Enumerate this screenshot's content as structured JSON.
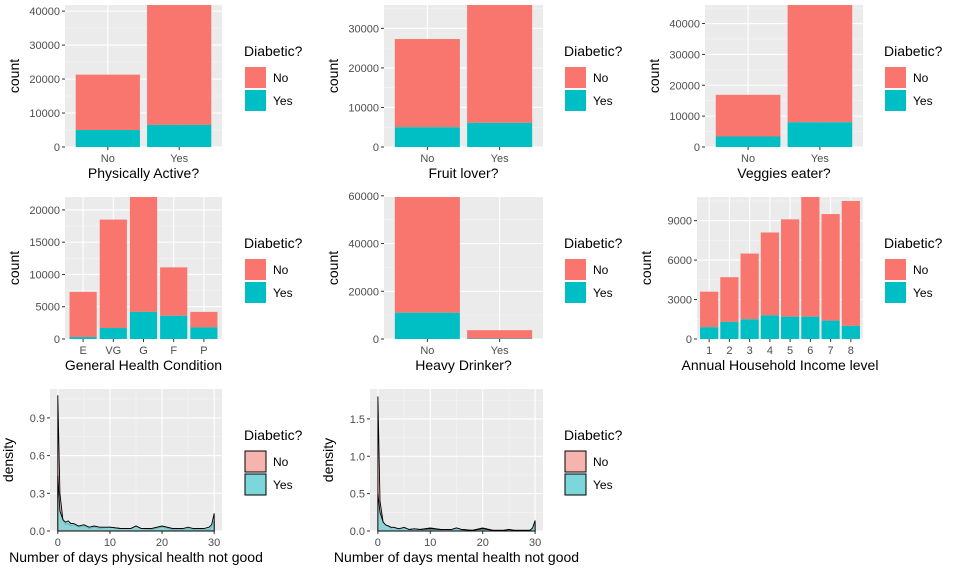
{
  "legend": {
    "title": "Diabetic?",
    "labels": [
      "No",
      "Yes"
    ],
    "colors": {
      "No": "#F8766D",
      "Yes": "#00BFC4"
    },
    "density_colors": {
      "No": "#F7B4AE",
      "Yes": "#7DD7DA"
    }
  },
  "style": {
    "panel_bg": "#EBEBEB",
    "grid_major": "#FFFFFF",
    "tick_text": "#4D4D4D",
    "axis_title": "#000000"
  },
  "chart_data": [
    {
      "type": "bar",
      "xlabel": "Physically Active?",
      "ylabel": "count",
      "categories": [
        "No",
        "Yes"
      ],
      "series": [
        {
          "name": "No",
          "values": [
            16300,
            35300
          ]
        },
        {
          "name": "Yes",
          "values": [
            5000,
            6500
          ]
        }
      ],
      "yticks": [
        0,
        10000,
        20000,
        30000,
        40000
      ],
      "ylim": [
        0,
        41800
      ]
    },
    {
      "type": "bar",
      "xlabel": "Fruit lover?",
      "ylabel": "count",
      "categories": [
        "No",
        "Yes"
      ],
      "series": [
        {
          "name": "No",
          "values": [
            22300,
            29800
          ]
        },
        {
          "name": "Yes",
          "values": [
            5000,
            6100
          ]
        }
      ],
      "yticks": [
        0,
        10000,
        20000,
        30000
      ],
      "ylim": [
        0,
        35900
      ]
    },
    {
      "type": "bar",
      "xlabel": "Veggies eater?",
      "ylabel": "count",
      "categories": [
        "No",
        "Yes"
      ],
      "series": [
        {
          "name": "No",
          "values": [
            13500,
            38000
          ]
        },
        {
          "name": "Yes",
          "values": [
            3400,
            8000
          ]
        }
      ],
      "yticks": [
        0,
        10000,
        20000,
        30000,
        40000
      ],
      "ylim": [
        0,
        46000
      ]
    },
    {
      "type": "bar",
      "xlabel": "General Health Condition",
      "ylabel": "count",
      "categories": [
        "E",
        "VG",
        "G",
        "F",
        "P"
      ],
      "series": [
        {
          "name": "No",
          "values": [
            7000,
            16800,
            17800,
            7500,
            2400
          ]
        },
        {
          "name": "Yes",
          "values": [
            300,
            1700,
            4200,
            3600,
            1800
          ]
        }
      ],
      "yticks": [
        0,
        5000,
        10000,
        15000,
        20000
      ],
      "ylim": [
        0,
        22000
      ]
    },
    {
      "type": "bar",
      "xlabel": "Heavy Drinker?",
      "ylabel": "count",
      "categories": [
        "No",
        "Yes"
      ],
      "series": [
        {
          "name": "No",
          "values": [
            48500,
            3500
          ]
        },
        {
          "name": "Yes",
          "values": [
            11000,
            200
          ]
        }
      ],
      "yticks": [
        0,
        20000,
        40000,
        60000
      ],
      "ylim": [
        0,
        59500
      ]
    },
    {
      "type": "bar",
      "xlabel": "Annual Household Income level",
      "ylabel": "count",
      "categories": [
        "1",
        "2",
        "3",
        "4",
        "5",
        "6",
        "7",
        "8"
      ],
      "series": [
        {
          "name": "No",
          "values": [
            2700,
            3400,
            5000,
            6300,
            7400,
            9100,
            8100,
            9500
          ]
        },
        {
          "name": "Yes",
          "values": [
            900,
            1300,
            1500,
            1800,
            1700,
            1700,
            1400,
            1000
          ]
        }
      ],
      "yticks": [
        0,
        3000,
        6000,
        9000
      ],
      "ylim": [
        0,
        10800
      ]
    },
    {
      "type": "area",
      "xlabel": "Number of days physical health not good",
      "ylabel": "density",
      "x": [
        0,
        0.4,
        1,
        1.5,
        2,
        2.5,
        3,
        4,
        5,
        6,
        7,
        8,
        10,
        12,
        14,
        15,
        16,
        18,
        20,
        22,
        24,
        25,
        26,
        28,
        29,
        29.5,
        30
      ],
      "series": [
        {
          "name": "No",
          "values": [
            1.08,
            0.3,
            0.08,
            0.05,
            0.06,
            0.04,
            0.05,
            0.03,
            0.04,
            0.02,
            0.03,
            0.02,
            0.03,
            0.02,
            0.02,
            0.04,
            0.02,
            0.01,
            0.03,
            0.01,
            0.01,
            0.02,
            0.01,
            0.01,
            0.01,
            0.03,
            0.08
          ]
        },
        {
          "name": "Yes",
          "values": [
            0.44,
            0.16,
            0.09,
            0.07,
            0.08,
            0.06,
            0.06,
            0.04,
            0.05,
            0.03,
            0.04,
            0.03,
            0.03,
            0.02,
            0.02,
            0.04,
            0.02,
            0.02,
            0.04,
            0.02,
            0.02,
            0.03,
            0.02,
            0.02,
            0.03,
            0.05,
            0.14
          ]
        }
      ],
      "xticks": [
        0,
        10,
        20,
        30
      ],
      "yticks": [
        0.0,
        0.3,
        0.6,
        0.9
      ],
      "xlim": [
        -1.5,
        31.5
      ],
      "ylim": [
        0,
        1.13
      ]
    },
    {
      "type": "area",
      "xlabel": "Number of days mental health not good",
      "ylabel": "density",
      "x": [
        0,
        0.4,
        1,
        1.5,
        2,
        2.5,
        3,
        4,
        5,
        6,
        7,
        8,
        10,
        12,
        14,
        15,
        16,
        18,
        20,
        22,
        24,
        25,
        26,
        28,
        29,
        29.5,
        30
      ],
      "series": [
        {
          "name": "No",
          "values": [
            1.8,
            0.4,
            0.12,
            0.08,
            0.06,
            0.04,
            0.05,
            0.03,
            0.04,
            0.02,
            0.03,
            0.02,
            0.04,
            0.02,
            0.02,
            0.04,
            0.02,
            0.01,
            0.04,
            0.01,
            0.01,
            0.02,
            0.01,
            0.01,
            0.01,
            0.03,
            0.1
          ]
        },
        {
          "name": "Yes",
          "values": [
            0.5,
            0.25,
            0.12,
            0.08,
            0.07,
            0.05,
            0.05,
            0.03,
            0.05,
            0.02,
            0.03,
            0.02,
            0.03,
            0.02,
            0.02,
            0.04,
            0.02,
            0.01,
            0.03,
            0.01,
            0.01,
            0.02,
            0.01,
            0.01,
            0.01,
            0.04,
            0.14
          ]
        }
      ],
      "xticks": [
        0,
        10,
        20,
        30
      ],
      "yticks": [
        0.0,
        0.5,
        1.0,
        1.5
      ],
      "xlim": [
        -1.5,
        31.5
      ],
      "ylim": [
        0,
        1.9
      ]
    }
  ]
}
